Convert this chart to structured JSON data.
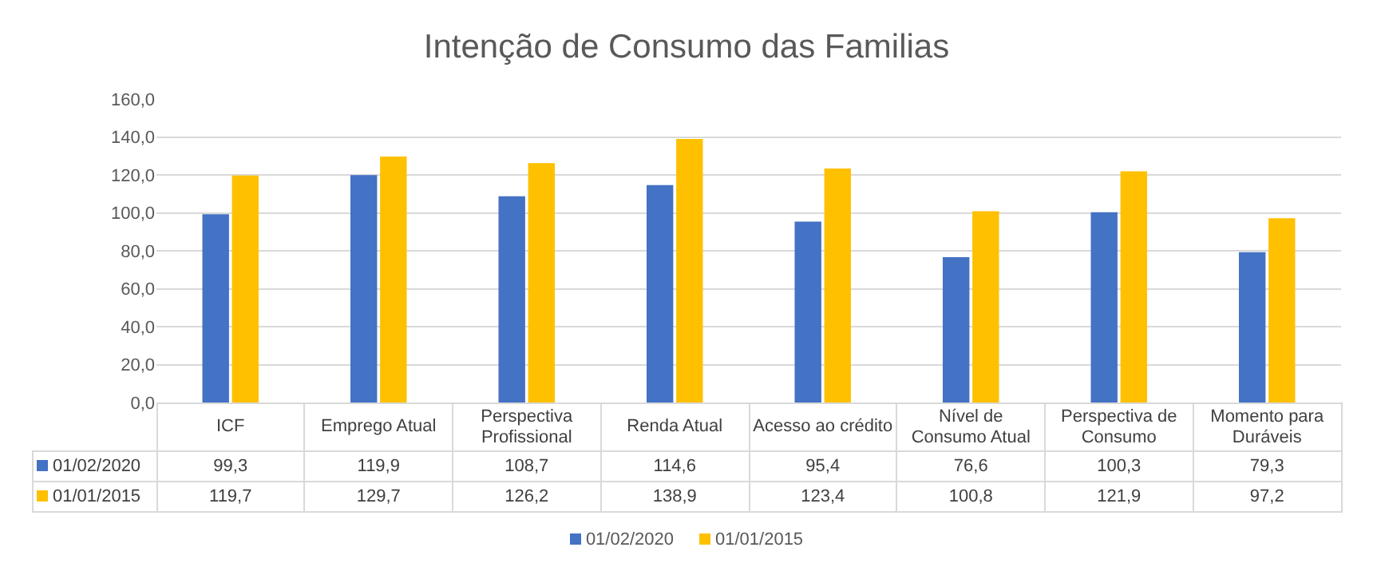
{
  "chart_data": {
    "type": "bar",
    "title": "Intenção de Consumo das Familias",
    "categories": [
      "ICF",
      "Emprego Atual",
      "Perspectiva Profissional",
      "Renda Atual",
      "Acesso ao crédito",
      "Nível de Consumo Atual",
      "Perspectiva de Consumo",
      "Momento para Duráveis"
    ],
    "series": [
      {
        "name": "01/02/2020",
        "color": "#4472c4",
        "values": [
          99.3,
          119.9,
          108.7,
          114.6,
          95.4,
          76.6,
          100.3,
          79.3
        ],
        "value_labels": [
          "99,3",
          "119,9",
          "108,7",
          "114,6",
          "95,4",
          "76,6",
          "100,3",
          "79,3"
        ]
      },
      {
        "name": "01/01/2015",
        "color": "#ffc000",
        "values": [
          119.7,
          129.7,
          126.2,
          138.9,
          123.4,
          100.8,
          121.9,
          97.2
        ],
        "value_labels": [
          "119,7",
          "129,7",
          "126,2",
          "138,9",
          "123,4",
          "100,8",
          "121,9",
          "97,2"
        ]
      }
    ],
    "ylim": [
      0,
      160
    ],
    "yticks": [
      {
        "value": 0,
        "label": "0,0"
      },
      {
        "value": 20,
        "label": "20,0"
      },
      {
        "value": 40,
        "label": "40,0"
      },
      {
        "value": 60,
        "label": "60,0"
      },
      {
        "value": 80,
        "label": "80,0"
      },
      {
        "value": 100,
        "label": "100,0"
      },
      {
        "value": 120,
        "label": "120,0"
      },
      {
        "value": 140,
        "label": "140,0"
      },
      {
        "value": 160,
        "label": "160,0"
      }
    ],
    "grid": "y",
    "legend": "bottom"
  }
}
